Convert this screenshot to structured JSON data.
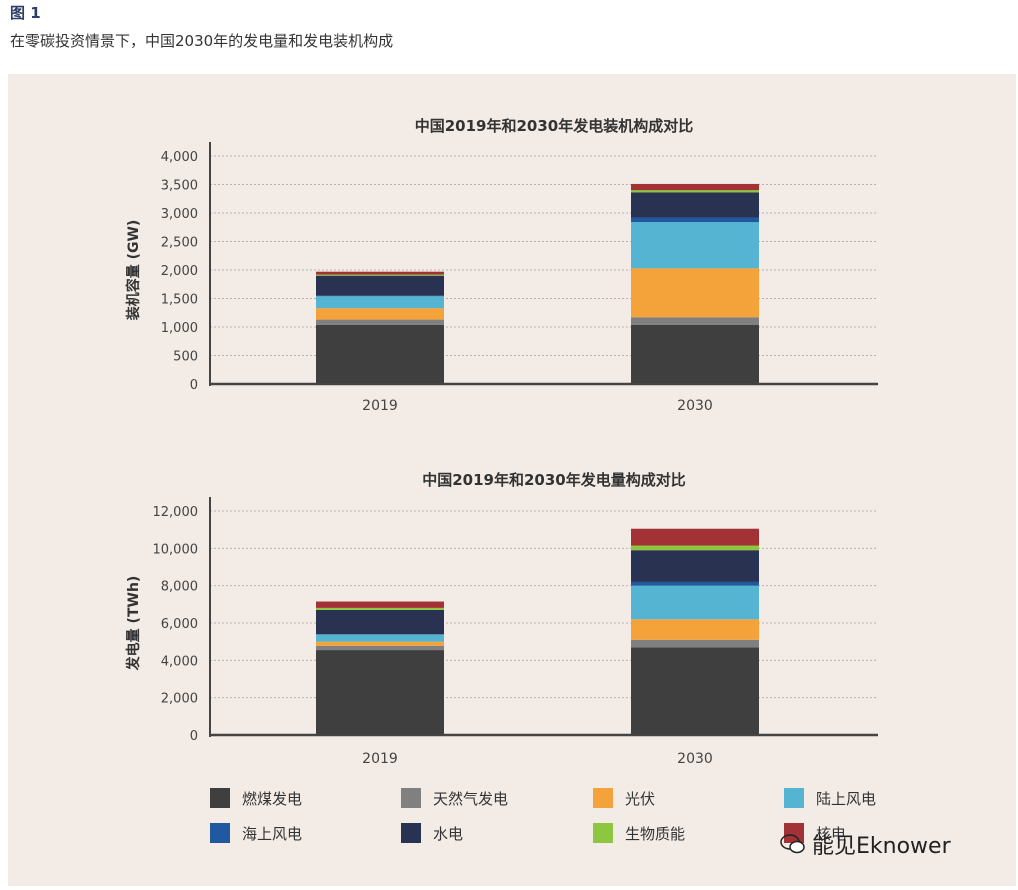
{
  "figure": {
    "label": "图 1",
    "caption": "在零碳投资情景下，中国2030年的发电量和发电装机构成"
  },
  "watermark": "能见Eknower",
  "chart_data": [
    {
      "type": "bar",
      "stacked": true,
      "title": "中国2019年和2030年发电装机构成对比",
      "xlabel": "",
      "ylabel": "装机容量 (GW)",
      "ylim": [
        0,
        4000
      ],
      "ytick_values": [
        0,
        500,
        1000,
        1500,
        2000,
        2500,
        3000,
        3500,
        4000
      ],
      "ytick_labels": [
        "0",
        "500",
        "1,000",
        "1,500",
        "2,000",
        "2,500",
        "3,000",
        "3,500",
        "4,000"
      ],
      "grid": true,
      "categories": [
        "2019",
        "2030"
      ],
      "series": [
        {
          "name": "燃煤发电",
          "color": "#3f3f3f",
          "values": [
            1040,
            1040
          ]
        },
        {
          "name": "天然气发电",
          "color": "#808080",
          "values": [
            90,
            130
          ]
        },
        {
          "name": "光伏",
          "color": "#f4a23a",
          "values": [
            200,
            860
          ]
        },
        {
          "name": "陆上风电",
          "color": "#56b4d3",
          "values": [
            210,
            810
          ]
        },
        {
          "name": "海上风电",
          "color": "#2159a0",
          "values": [
            10,
            80
          ]
        },
        {
          "name": "水电",
          "color": "#2a3252",
          "values": [
            350,
            440
          ]
        },
        {
          "name": "生物质能",
          "color": "#8dc63f",
          "values": [
            20,
            40
          ]
        },
        {
          "name": "核电",
          "color": "#a23236",
          "values": [
            50,
            110
          ]
        }
      ]
    },
    {
      "type": "bar",
      "stacked": true,
      "title": "中国2019年和2030年发电量构成对比",
      "xlabel": "",
      "ylabel": "发电量 (TWh)",
      "ylim": [
        0,
        12000
      ],
      "ytick_values": [
        0,
        2000,
        4000,
        6000,
        8000,
        10000,
        12000
      ],
      "ytick_labels": [
        "0",
        "2,000",
        "4,000",
        "6,000",
        "8,000",
        "10,000",
        "12,000"
      ],
      "grid": true,
      "categories": [
        "2019",
        "2030"
      ],
      "series": [
        {
          "name": "燃煤发电",
          "color": "#3f3f3f",
          "values": [
            4550,
            4700
          ]
        },
        {
          "name": "天然气发电",
          "color": "#808080",
          "values": [
            230,
            400
          ]
        },
        {
          "name": "光伏",
          "color": "#f4a23a",
          "values": [
            220,
            1100
          ]
        },
        {
          "name": "陆上风电",
          "color": "#56b4d3",
          "values": [
            380,
            1800
          ]
        },
        {
          "name": "海上风电",
          "color": "#2159a0",
          "values": [
            20,
            200
          ]
        },
        {
          "name": "水电",
          "color": "#2a3252",
          "values": [
            1300,
            1700
          ]
        },
        {
          "name": "生物质能",
          "color": "#8dc63f",
          "values": [
            110,
            250
          ]
        },
        {
          "name": "核电",
          "color": "#a23236",
          "values": [
            340,
            900
          ]
        }
      ]
    }
  ],
  "legend": {
    "items": [
      {
        "label": "燃煤发电",
        "color": "#3f3f3f"
      },
      {
        "label": "天然气发电",
        "color": "#808080"
      },
      {
        "label": "光伏",
        "color": "#f4a23a"
      },
      {
        "label": "陆上风电",
        "color": "#56b4d3"
      },
      {
        "label": "海上风电",
        "color": "#2159a0"
      },
      {
        "label": "水电",
        "color": "#2a3252"
      },
      {
        "label": "生物质能",
        "color": "#8dc63f"
      },
      {
        "label": "核电",
        "color": "#a23236"
      }
    ]
  }
}
